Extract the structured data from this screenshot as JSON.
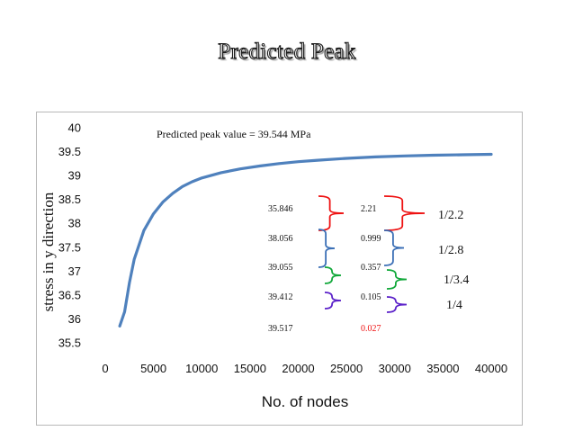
{
  "slide": {
    "title": "Predicted Peak"
  },
  "colors": {
    "curve": "#4f81bd",
    "red": "#ee1111",
    "blue": "#3b6fb6",
    "green": "#11a83a",
    "purple": "#5b21c9"
  },
  "chart_data": {
    "type": "line",
    "title": "",
    "annotation": "Predicted peak value = 39.544 MPa",
    "xlabel": "No. of nodes",
    "ylabel": "stress in y direction",
    "xlim": [
      0,
      40000
    ],
    "ylim": [
      35.5,
      40
    ],
    "xticks": [
      0,
      5000,
      10000,
      15000,
      20000,
      25000,
      30000,
      35000,
      40000
    ],
    "yticks": [
      35.5,
      36,
      36.5,
      37,
      37.5,
      38,
      38.5,
      39,
      39.5,
      40
    ],
    "series": [
      {
        "name": "stress",
        "x": [
          1500,
          2000,
          2500,
          3000,
          4000,
          5000,
          6000,
          7000,
          8000,
          9000,
          10000,
          12000,
          14000,
          16000,
          18000,
          20000,
          22000,
          25000,
          28000,
          31000,
          34000,
          37000,
          40000
        ],
        "y": [
          35.85,
          36.15,
          36.75,
          37.25,
          37.85,
          38.2,
          38.45,
          38.63,
          38.77,
          38.87,
          38.95,
          39.06,
          39.14,
          39.2,
          39.25,
          39.29,
          39.32,
          39.36,
          39.39,
          39.41,
          39.425,
          39.435,
          39.445
        ]
      }
    ],
    "values_table": [
      {
        "value": "35.846",
        "diff": "2.21",
        "ratio": "1/2.2"
      },
      {
        "value": "38.056",
        "diff": "0.999",
        "ratio": "1/2.8"
      },
      {
        "value": "39.055",
        "diff": "0.357",
        "ratio": "1/3.4"
      },
      {
        "value": "39.412",
        "diff": "0.105",
        "ratio": "1/4"
      },
      {
        "value": "39.517",
        "diff": "0.027"
      }
    ]
  }
}
